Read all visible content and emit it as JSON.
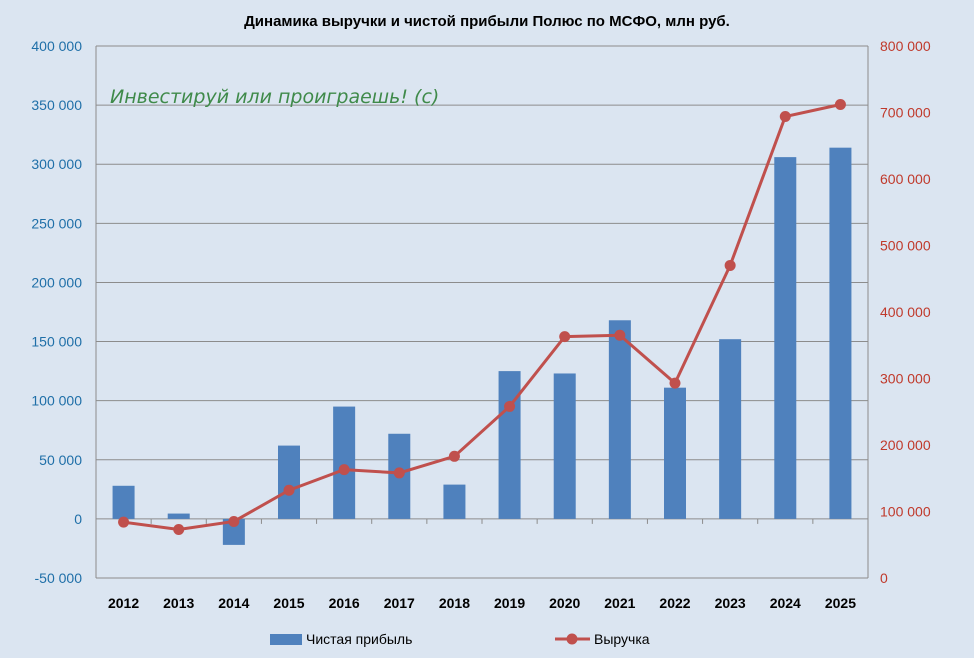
{
  "chart_data": {
    "type": "bar",
    "title": "Динамика выручки и чистой прибыли Полюс по МСФО, млн руб.",
    "categories": [
      "2012",
      "2013",
      "2014",
      "2015",
      "2016",
      "2017",
      "2018",
      "2019",
      "2020",
      "2021",
      "2022",
      "2023",
      "2024",
      "2025"
    ],
    "series": [
      {
        "name": "Чистая прибыль",
        "type": "bar",
        "axis": "left",
        "color": "#4f81bd",
        "values": [
          28000,
          4500,
          -22000,
          62000,
          95000,
          72000,
          29000,
          125000,
          123000,
          168000,
          111000,
          152000,
          306000,
          314000
        ]
      },
      {
        "name": "Выручка",
        "type": "line",
        "axis": "right",
        "color": "#c0504d",
        "values": [
          84000,
          73000,
          85000,
          132000,
          163000,
          158000,
          183000,
          258000,
          363000,
          365000,
          293000,
          470000,
          694000,
          712000
        ]
      }
    ],
    "y_left": {
      "min": -50000,
      "max": 400000,
      "step": 50000
    },
    "y_right": {
      "min": 0,
      "max": 800000,
      "step": 100000
    },
    "grid": true,
    "legend": "bottom",
    "annotation": "Инвестируй или проиграешь! (с)"
  }
}
